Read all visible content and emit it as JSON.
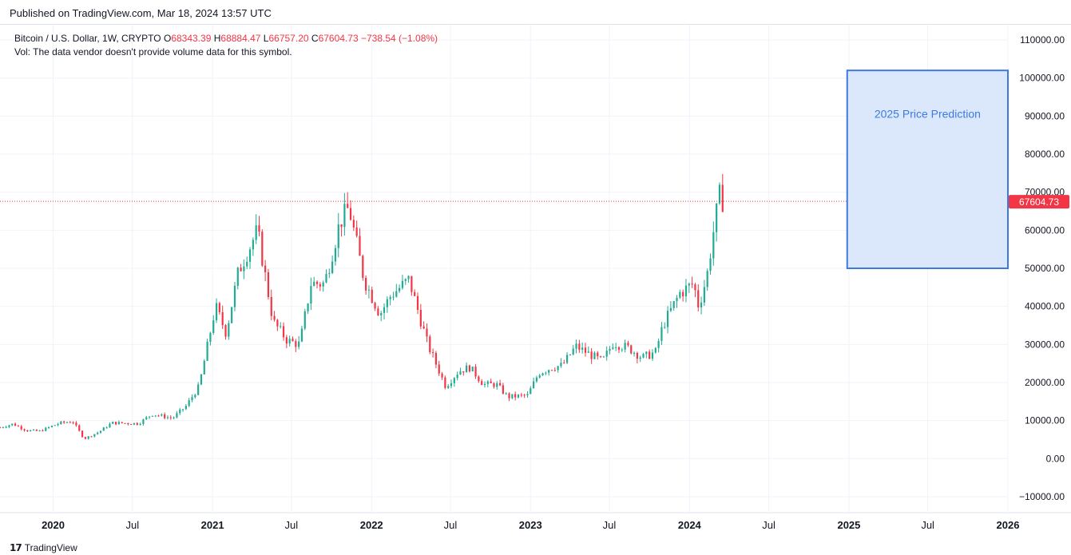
{
  "header": {
    "published": "Published on TradingView.com, Mar 18, 2024 13:57 UTC"
  },
  "legend": {
    "symbol": "Bitcoin / U.S. Dollar, 1W, CRYPTO",
    "o_label": "O",
    "o_value": "68343.39",
    "h_label": "H",
    "h_value": "68884.47",
    "l_label": "L",
    "l_value": "66757.20",
    "c_label": "C",
    "c_value": "67604.73",
    "change": "−738.54 (−1.08%)",
    "vol": "Vol: The data vendor doesn't provide volume data for this symbol."
  },
  "footer": {
    "brand": "TradingView",
    "logo_icon": "tradingview-logo-icon"
  },
  "colors": {
    "up": "#22ab94",
    "down": "#f23645",
    "price_line": "#f23645",
    "box_fill": "#dbe8fb",
    "box_stroke": "#3d7ae0",
    "grid": "#f0f3fa"
  },
  "chart_data": {
    "type": "candlestick",
    "ylim": [
      -14000,
      114000
    ],
    "y_ticks": [
      110000,
      100000,
      90000,
      80000,
      70000,
      60000,
      50000,
      40000,
      30000,
      20000,
      10000,
      0,
      -10000
    ],
    "y_tick_labels": [
      "110000.00",
      "100000.00",
      "90000.00",
      "80000.00",
      "70000.00",
      "60000.00",
      "50000.00",
      "40000.00",
      "30000.00",
      "20000.00",
      "10000.00",
      "0.00",
      "−10000.00"
    ],
    "x_range": [
      "2019-09-01",
      "2026-01-01"
    ],
    "x_ticks": [
      "2020-01-01",
      "2020-07-01",
      "2021-01-01",
      "2021-07-01",
      "2022-01-01",
      "2022-07-01",
      "2023-01-01",
      "2023-07-01",
      "2024-01-01",
      "2024-07-01",
      "2025-01-01",
      "2025-07-01",
      "2026-01-01"
    ],
    "x_tick_labels": [
      "2020",
      "Jul",
      "2021",
      "Jul",
      "2022",
      "Jul",
      "2023",
      "Jul",
      "2024",
      "Jul",
      "2025",
      "Jul",
      "2026"
    ],
    "x_tick_bold": [
      true,
      false,
      true,
      false,
      true,
      false,
      true,
      false,
      true,
      false,
      true,
      false,
      true
    ],
    "last_price": 67604.73,
    "last_price_label": "67604.73",
    "key_points": [
      [
        "2019-09-01",
        8200
      ],
      [
        "2019-10-01",
        9100
      ],
      [
        "2019-11-01",
        7400
      ],
      [
        "2019-12-01",
        7200
      ],
      [
        "2020-01-15",
        9300
      ],
      [
        "2020-02-15",
        9800
      ],
      [
        "2020-03-12",
        5200
      ],
      [
        "2020-04-15",
        7000
      ],
      [
        "2020-05-15",
        9400
      ],
      [
        "2020-07-15",
        9200
      ],
      [
        "2020-08-15",
        11700
      ],
      [
        "2020-10-01",
        10600
      ],
      [
        "2020-11-01",
        13800
      ],
      [
        "2020-12-01",
        19000
      ],
      [
        "2021-01-08",
        40000
      ],
      [
        "2021-02-01",
        33000
      ],
      [
        "2021-03-01",
        49000
      ],
      [
        "2021-04-14",
        60000
      ],
      [
        "2021-05-20",
        36000
      ],
      [
        "2021-06-22",
        31000
      ],
      [
        "2021-07-20",
        30000
      ],
      [
        "2021-08-15",
        46000
      ],
      [
        "2021-09-15",
        46000
      ],
      [
        "2021-10-20",
        62000
      ],
      [
        "2021-11-10",
        66000
      ],
      [
        "2021-12-15",
        47000
      ],
      [
        "2022-01-20",
        38000
      ],
      [
        "2022-02-15",
        43000
      ],
      [
        "2022-03-28",
        47000
      ],
      [
        "2022-05-10",
        30000
      ],
      [
        "2022-06-20",
        19000
      ],
      [
        "2022-07-20",
        23000
      ],
      [
        "2022-08-15",
        24000
      ],
      [
        "2022-09-15",
        19500
      ],
      [
        "2022-10-15",
        19500
      ],
      [
        "2022-11-10",
        16200
      ],
      [
        "2022-12-25",
        16600
      ],
      [
        "2023-01-20",
        22500
      ],
      [
        "2023-02-20",
        24000
      ],
      [
        "2023-03-15",
        24500
      ],
      [
        "2023-04-15",
        29500
      ],
      [
        "2023-06-15",
        25500
      ],
      [
        "2023-07-10",
        30500
      ],
      [
        "2023-08-15",
        29000
      ],
      [
        "2023-09-15",
        26500
      ],
      [
        "2023-10-15",
        28000
      ],
      [
        "2023-11-01",
        35000
      ],
      [
        "2023-12-10",
        43500
      ],
      [
        "2024-01-10",
        46000
      ],
      [
        "2024-01-22",
        40000
      ],
      [
        "2024-02-10",
        48000
      ],
      [
        "2024-02-28",
        62000
      ],
      [
        "2024-03-10",
        69000
      ],
      [
        "2024-03-18",
        67604
      ]
    ],
    "annotations": [
      {
        "type": "rectangle",
        "x_start": "2024-12-28",
        "x_end": "2026-01-01",
        "y_start": 50000,
        "y_end": 102000,
        "text": "2025 Price Prediction"
      }
    ]
  }
}
